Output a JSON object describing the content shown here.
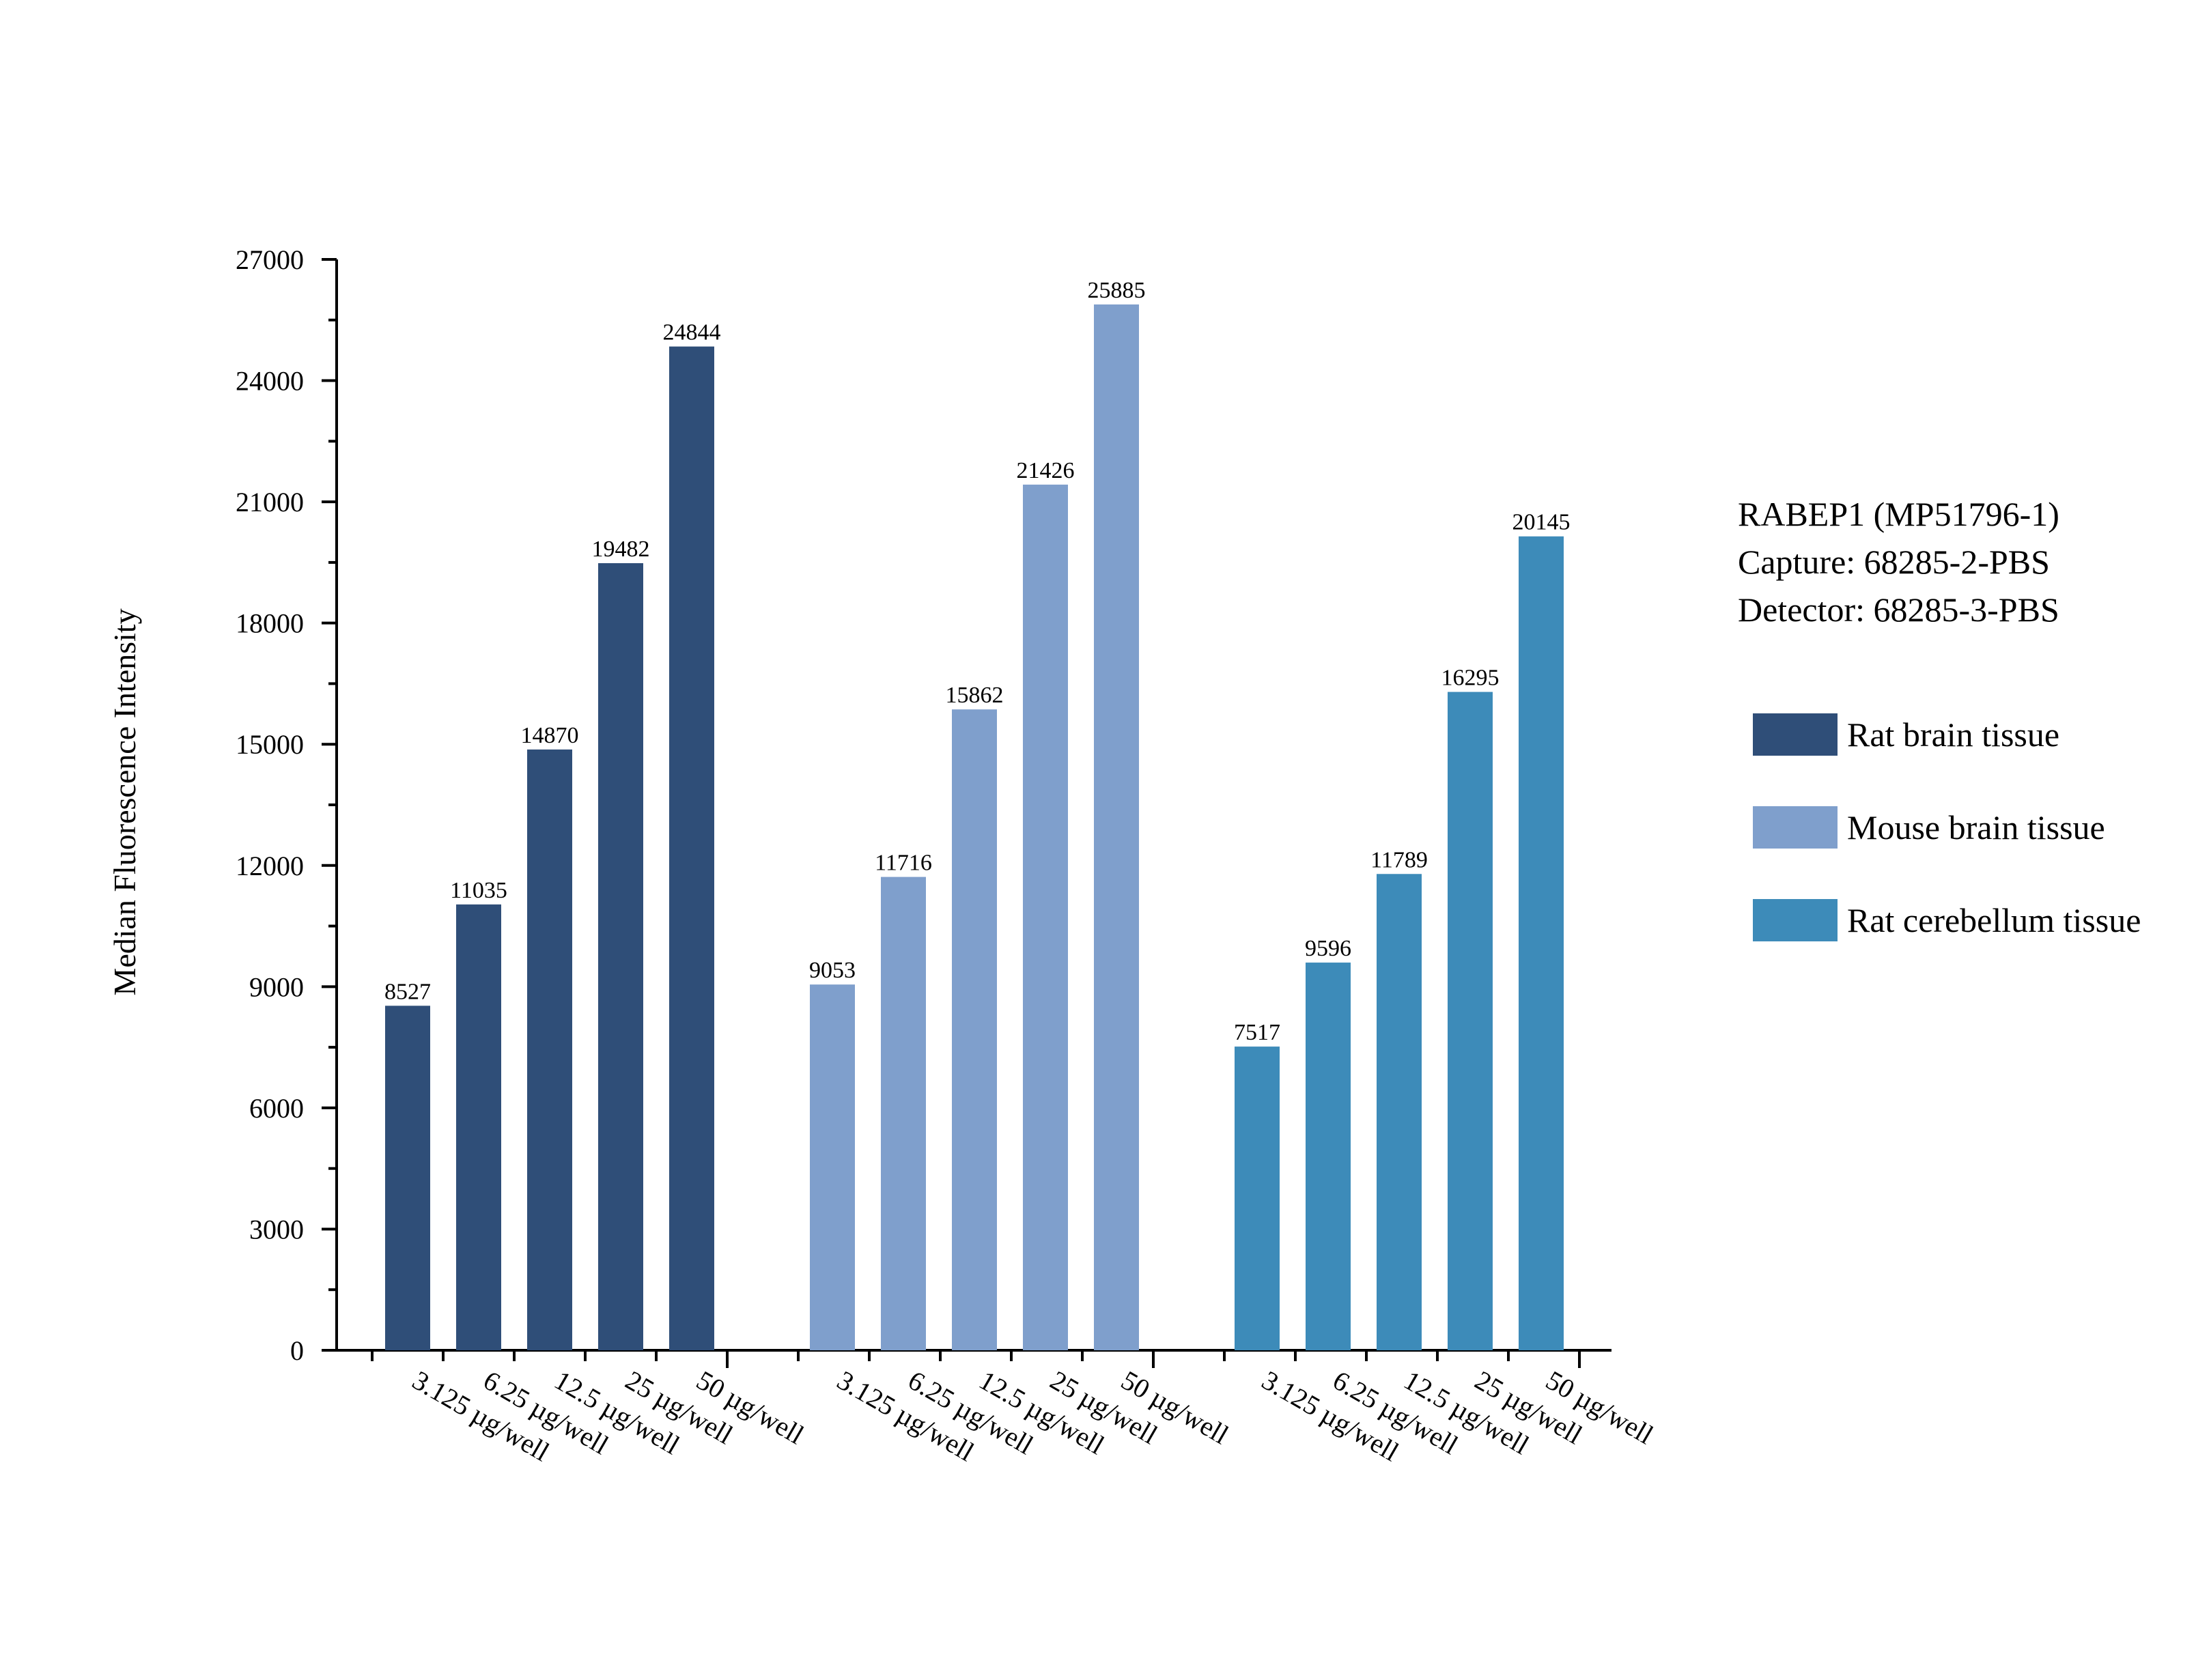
{
  "chart_data": {
    "type": "bar",
    "title": "",
    "xlabel": "",
    "ylabel": "Median Fluorescence Intensity",
    "ylim": [
      0,
      27000
    ],
    "yticks": [
      0,
      3000,
      6000,
      9000,
      12000,
      15000,
      18000,
      21000,
      24000,
      27000
    ],
    "categories": [
      "3.125 µg/well",
      "6.25 µg/well",
      "12.5 µg/well",
      "25 µg/well",
      "50 µg/well"
    ],
    "series": [
      {
        "name": "Rat brain tissue",
        "color": "#2f4e78",
        "values": [
          8527,
          11035,
          14870,
          19482,
          24844
        ]
      },
      {
        "name": "Mouse brain tissue",
        "color": "#7f9fcc",
        "values": [
          9053,
          11716,
          15862,
          21426,
          25885
        ]
      },
      {
        "name": "Rat cerebellum tissue",
        "color": "#3d8bb9",
        "values": [
          7517,
          9596,
          11789,
          16295,
          20145
        ]
      }
    ],
    "legend_position": "right",
    "grid": false
  },
  "info": {
    "line1": "RABEP1 (MP51796-1)",
    "line2": "Capture: 68285-2-PBS",
    "line3": "Detector: 68285-3-PBS"
  }
}
